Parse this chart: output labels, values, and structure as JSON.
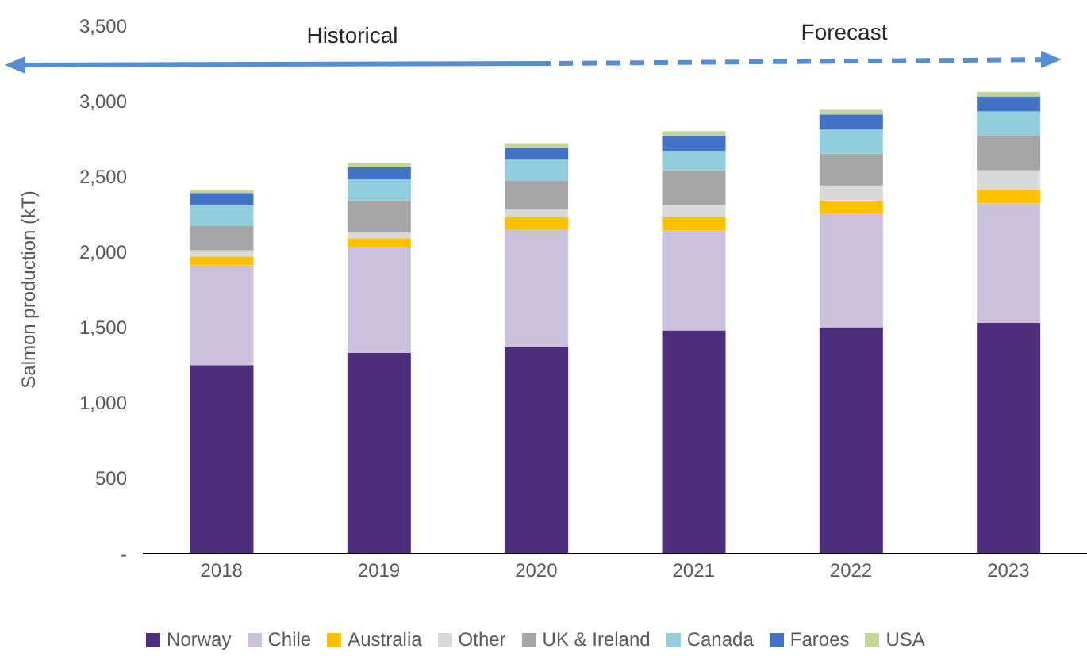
{
  "chart_data": {
    "type": "bar",
    "stacked": true,
    "categories": [
      "2018",
      "2019",
      "2020",
      "2021",
      "2022",
      "2023"
    ],
    "ylabel": "Salmon production (kT)",
    "annotations": [
      "Historical",
      "Forecast"
    ],
    "ylim": [
      0,
      3500
    ],
    "yticks": [
      {
        "value": 0,
        "label": "-"
      },
      500,
      {
        "value": 1000,
        "label": "1,000"
      },
      {
        "value": 1500,
        "label": "1,500"
      },
      {
        "value": 2000,
        "label": "2,000"
      },
      {
        "value": 2500,
        "label": "2,500"
      },
      {
        "value": 3000,
        "label": "3,000"
      },
      {
        "value": 3500,
        "label": "3,500"
      }
    ],
    "legend": "bottom",
    "series": [
      {
        "name": "Norway",
        "color": "#4e2d7c",
        "values": [
          1250,
          1330,
          1370,
          1480,
          1500,
          1530
        ]
      },
      {
        "name": "Chile",
        "color": "#cbc1dc",
        "values": [
          660,
          700,
          780,
          660,
          750,
          790
        ]
      },
      {
        "name": "Australia",
        "color": "#ffc000",
        "values": [
          60,
          60,
          80,
          90,
          90,
          90
        ]
      },
      {
        "name": "Other",
        "color": "#d9d9d9",
        "values": [
          40,
          40,
          50,
          80,
          100,
          130
        ]
      },
      {
        "name": "UK & Ireland",
        "color": "#a5a5a5",
        "values": [
          160,
          210,
          190,
          230,
          210,
          230
        ]
      },
      {
        "name": "Canada",
        "color": "#92cddc",
        "values": [
          140,
          140,
          140,
          130,
          160,
          160
        ]
      },
      {
        "name": "Faroes",
        "color": "#4472c4",
        "values": [
          80,
          80,
          80,
          100,
          100,
          100
        ]
      },
      {
        "name": "USA",
        "color": "#c4d79b",
        "values": [
          20,
          30,
          30,
          30,
          30,
          30
        ]
      }
    ]
  }
}
